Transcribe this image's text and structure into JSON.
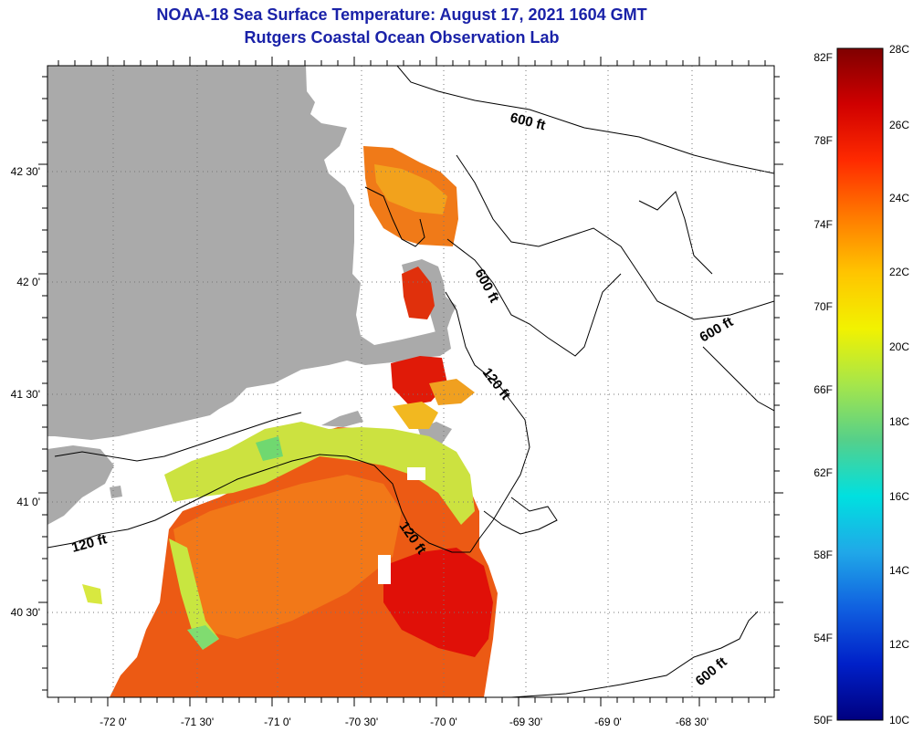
{
  "title": {
    "line1": "NOAA-18 Sea Surface Temperature:  August 17, 2021 1604 GMT",
    "line2": "Rutgers Coastal Ocean Observation Lab"
  },
  "map": {
    "lon_ticks": [
      "-72 0'",
      "-71 30'",
      "-71 0'",
      "-70 30'",
      "-70 0'",
      "-69 30'",
      "-69 0'",
      "-68 30'"
    ],
    "lat_ticks": [
      "42 30'",
      "42 0'",
      "41 30'",
      "41 0'",
      "40 30'"
    ],
    "contour_labels": [
      "600 ft",
      "600 ft",
      "600 ft",
      "120 ft",
      "120 ft",
      "120 ft",
      "600 ft"
    ]
  },
  "colorbar": {
    "fahrenheit": [
      "82F",
      "78F",
      "74F",
      "70F",
      "66F",
      "62F",
      "58F",
      "54F",
      "50F"
    ],
    "celsius": [
      "28C",
      "26C",
      "24C",
      "22C",
      "20C",
      "18C",
      "16C",
      "14C",
      "12C",
      "10C"
    ],
    "colors": [
      "#7f0000",
      "#d00000",
      "#ff2a00",
      "#ff7a00",
      "#ffc400",
      "#f2f200",
      "#a6e64a",
      "#55d08a",
      "#00e0e0",
      "#20a8e8",
      "#1060e0",
      "#0020c8",
      "#000080"
    ]
  },
  "colors": {
    "land": "#aaaaaa",
    "title": "#1a22a8",
    "sst_warm": "#e83a10",
    "sst_hot": "#e01008",
    "sst_mid": "#f07018",
    "sst_cool": "#c8e640"
  }
}
